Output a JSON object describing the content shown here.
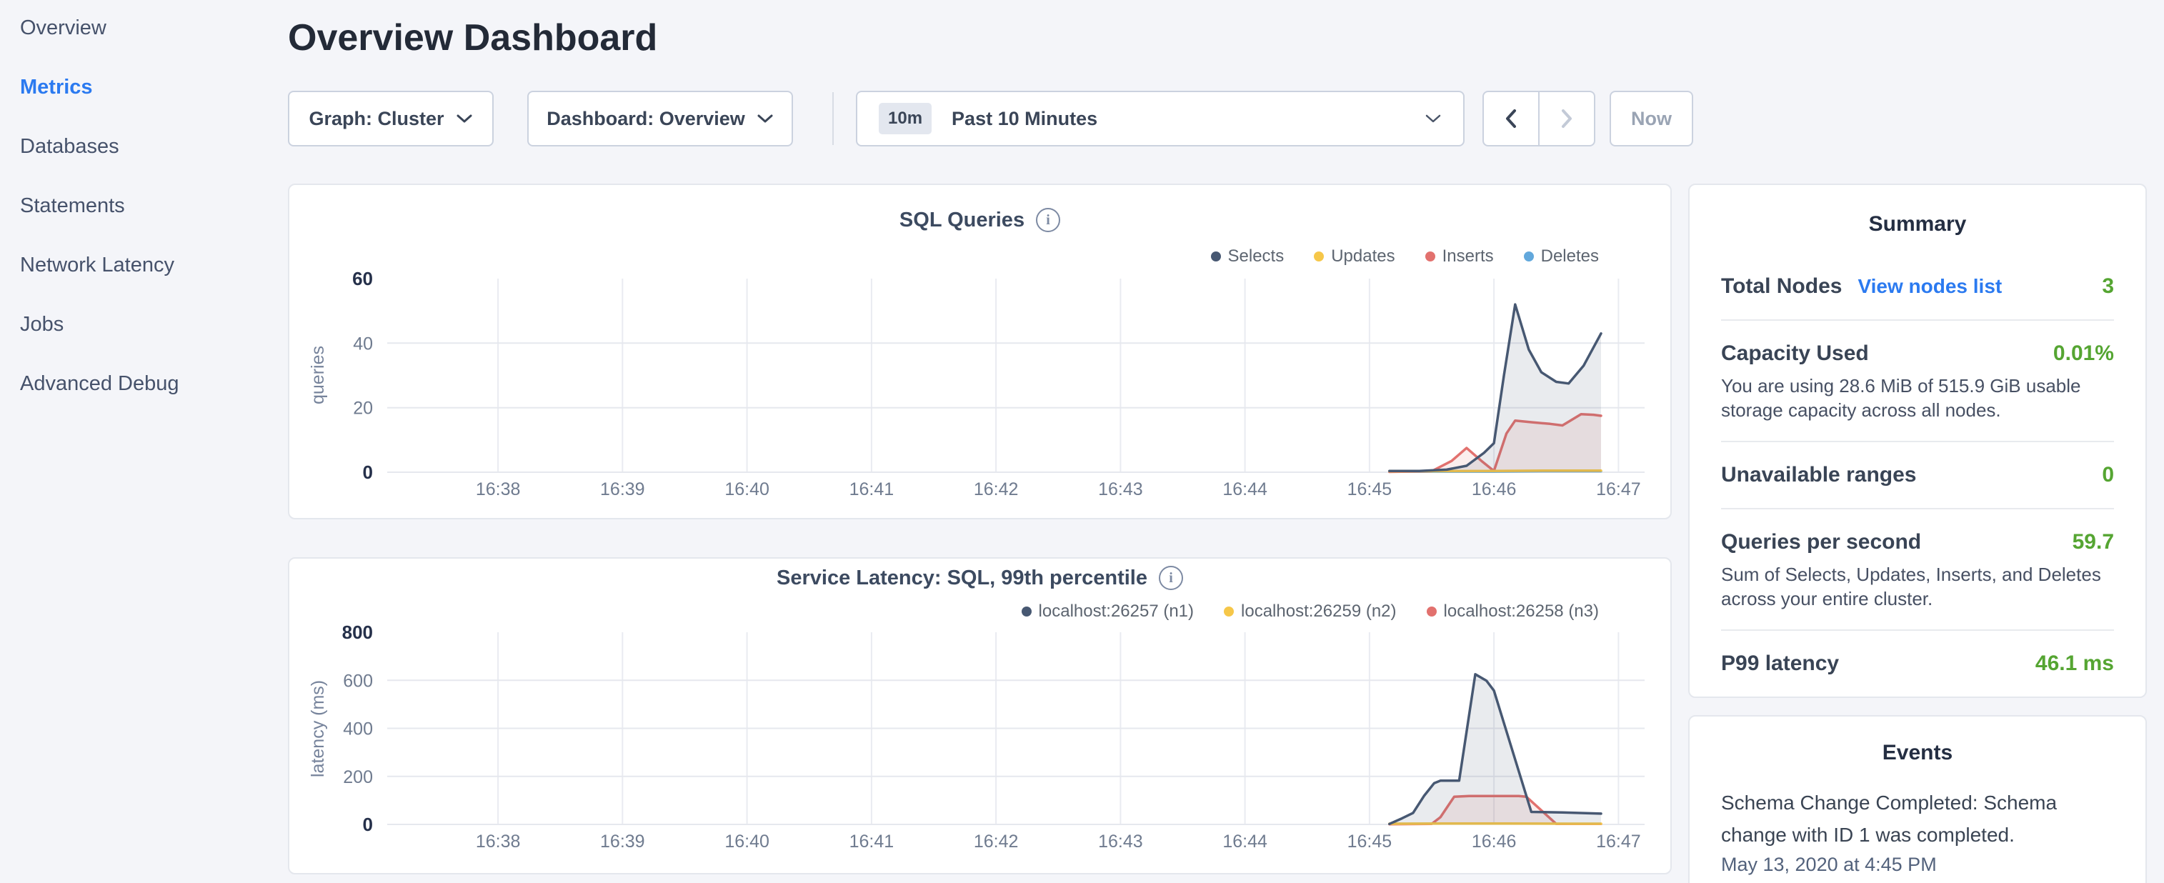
{
  "sidebar": {
    "items": [
      {
        "label": "Overview",
        "active": false
      },
      {
        "label": "Metrics",
        "active": true
      },
      {
        "label": "Databases",
        "active": false
      },
      {
        "label": "Statements",
        "active": false
      },
      {
        "label": "Network Latency",
        "active": false
      },
      {
        "label": "Jobs",
        "active": false
      },
      {
        "label": "Advanced Debug",
        "active": false
      }
    ]
  },
  "header": {
    "title": "Overview Dashboard"
  },
  "toolbar": {
    "graph_dropdown": {
      "label": "Graph: Cluster"
    },
    "dashboard_dropdown": {
      "label": "Dashboard: Overview"
    },
    "time_selector": {
      "badge": "10m",
      "label": "Past 10 Minutes"
    },
    "now_button": {
      "label": "Now"
    }
  },
  "colors": {
    "accent_blue": "#2B7AF0",
    "value_green": "#55A532",
    "navy_series": "#475872",
    "yellow_series": "#F6C749",
    "red_series": "#E2716E",
    "blue_series": "#62A8DC",
    "page_bg": "#F4F5F9"
  },
  "chart_data": [
    {
      "type": "area",
      "title": "SQL Queries",
      "xlabel": "",
      "ylabel": "queries",
      "legend_position": "top-right",
      "grid": true,
      "xlim": [
        -0.89,
        9.21
      ],
      "ylim": [
        0,
        60
      ],
      "x_ticks": [
        {
          "v": 0,
          "label": "16:38"
        },
        {
          "v": 1,
          "label": "16:39"
        },
        {
          "v": 2,
          "label": "16:40"
        },
        {
          "v": 3,
          "label": "16:41"
        },
        {
          "v": 4,
          "label": "16:42"
        },
        {
          "v": 5,
          "label": "16:43"
        },
        {
          "v": 6,
          "label": "16:44"
        },
        {
          "v": 7,
          "label": "16:45"
        },
        {
          "v": 8,
          "label": "16:46"
        },
        {
          "v": 9,
          "label": "16:47"
        }
      ],
      "y_ticks": [
        {
          "v": 0,
          "label": "0",
          "bold": true
        },
        {
          "v": 20,
          "label": "20",
          "bold": false
        },
        {
          "v": 40,
          "label": "40",
          "bold": false
        },
        {
          "v": 60,
          "label": "60",
          "bold": true
        }
      ],
      "series": [
        {
          "name": "Selects",
          "color": "#475872",
          "fill": true,
          "points": [
            [
              7.16,
              0.4
            ],
            [
              7.4,
              0.4
            ],
            [
              7.62,
              0.8
            ],
            [
              7.78,
              2.0
            ],
            [
              7.92,
              6.0
            ],
            [
              8.0,
              9.0
            ],
            [
              8.08,
              30
            ],
            [
              8.17,
              52
            ],
            [
              8.28,
              38
            ],
            [
              8.38,
              31
            ],
            [
              8.5,
              28
            ],
            [
              8.6,
              27.5
            ],
            [
              8.72,
              33
            ],
            [
              8.86,
              43
            ]
          ]
        },
        {
          "name": "Updates",
          "color": "#F6C749",
          "fill": false,
          "points": [
            [
              7.16,
              0.3
            ],
            [
              7.6,
              0.35
            ],
            [
              8.0,
              0.4
            ],
            [
              8.4,
              0.5
            ],
            [
              8.86,
              0.5
            ]
          ]
        },
        {
          "name": "Inserts",
          "color": "#E2716E",
          "fill": true,
          "points": [
            [
              7.16,
              0.1
            ],
            [
              7.5,
              0.3
            ],
            [
              7.66,
              3.5
            ],
            [
              7.78,
              7.5
            ],
            [
              7.9,
              3.5
            ],
            [
              8.0,
              0.4
            ],
            [
              8.1,
              12
            ],
            [
              8.17,
              16
            ],
            [
              8.3,
              15.5
            ],
            [
              8.45,
              15
            ],
            [
              8.55,
              14.5
            ],
            [
              8.7,
              18
            ],
            [
              8.8,
              17.8
            ],
            [
              8.86,
              17.5
            ]
          ]
        },
        {
          "name": "Deletes",
          "color": "#62A8DC",
          "fill": false,
          "points": [
            [
              7.16,
              0.15
            ],
            [
              7.6,
              0.2
            ],
            [
              8.0,
              0.2
            ],
            [
              8.4,
              0.3
            ],
            [
              8.86,
              0.3
            ]
          ]
        }
      ]
    },
    {
      "type": "area",
      "title": "Service Latency: SQL, 99th percentile",
      "xlabel": "",
      "ylabel": "latency (ms)",
      "legend_position": "top-right",
      "grid": true,
      "xlim": [
        -0.89,
        9.21
      ],
      "ylim": [
        0,
        800
      ],
      "x_ticks": [
        {
          "v": 0,
          "label": "16:38"
        },
        {
          "v": 1,
          "label": "16:39"
        },
        {
          "v": 2,
          "label": "16:40"
        },
        {
          "v": 3,
          "label": "16:41"
        },
        {
          "v": 4,
          "label": "16:42"
        },
        {
          "v": 5,
          "label": "16:43"
        },
        {
          "v": 6,
          "label": "16:44"
        },
        {
          "v": 7,
          "label": "16:45"
        },
        {
          "v": 8,
          "label": "16:46"
        },
        {
          "v": 9,
          "label": "16:47"
        }
      ],
      "y_ticks": [
        {
          "v": 0,
          "label": "0",
          "bold": true
        },
        {
          "v": 200,
          "label": "200",
          "bold": false
        },
        {
          "v": 400,
          "label": "400",
          "bold": false
        },
        {
          "v": 600,
          "label": "600",
          "bold": false
        },
        {
          "v": 800,
          "label": "800",
          "bold": true
        }
      ],
      "series": [
        {
          "name": "localhost:26257 (n1)",
          "color": "#475872",
          "fill": true,
          "points": [
            [
              7.16,
              2
            ],
            [
              7.26,
              25
            ],
            [
              7.35,
              48
            ],
            [
              7.44,
              120
            ],
            [
              7.52,
              172
            ],
            [
              7.57,
              182
            ],
            [
              7.72,
              182
            ],
            [
              7.85,
              625
            ],
            [
              7.94,
              598
            ],
            [
              8.0,
              557
            ],
            [
              8.3,
              52
            ],
            [
              8.55,
              50
            ],
            [
              8.86,
              45
            ]
          ]
        },
        {
          "name": "localhost:26259 (n2)",
          "color": "#F6C749",
          "fill": false,
          "points": [
            [
              7.16,
              3
            ],
            [
              7.6,
              4
            ],
            [
              8.1,
              4
            ],
            [
              8.6,
              3
            ],
            [
              8.86,
              3
            ]
          ]
        },
        {
          "name": "localhost:26258 (n3)",
          "color": "#E2716E",
          "fill": true,
          "points": [
            [
              7.16,
              1
            ],
            [
              7.5,
              2
            ],
            [
              7.57,
              30
            ],
            [
              7.68,
              115
            ],
            [
              7.8,
              118
            ],
            [
              8.2,
              118
            ],
            [
              8.26,
              115
            ],
            [
              8.5,
              2
            ],
            [
              8.86,
              2
            ]
          ]
        }
      ]
    }
  ],
  "summary": {
    "title": "Summary",
    "rows": [
      {
        "label": "Total Nodes",
        "link": "View nodes list",
        "value": "3"
      },
      {
        "label": "Capacity Used",
        "value": "0.01%",
        "note": "You are using 28.6 MiB of 515.9 GiB usable storage capacity across all nodes."
      },
      {
        "label": "Unavailable ranges",
        "value": "0"
      },
      {
        "label": "Queries per second",
        "value": "59.7",
        "note": "Sum of Selects, Updates, Inserts, and Deletes across your entire cluster."
      },
      {
        "label": "P99 latency",
        "value": "46.1 ms"
      }
    ]
  },
  "events": {
    "title": "Events",
    "items": [
      {
        "message": "Schema Change Completed: Schema change with ID 1 was completed.",
        "timestamp": "May 13, 2020 at 4:45 PM"
      }
    ]
  }
}
